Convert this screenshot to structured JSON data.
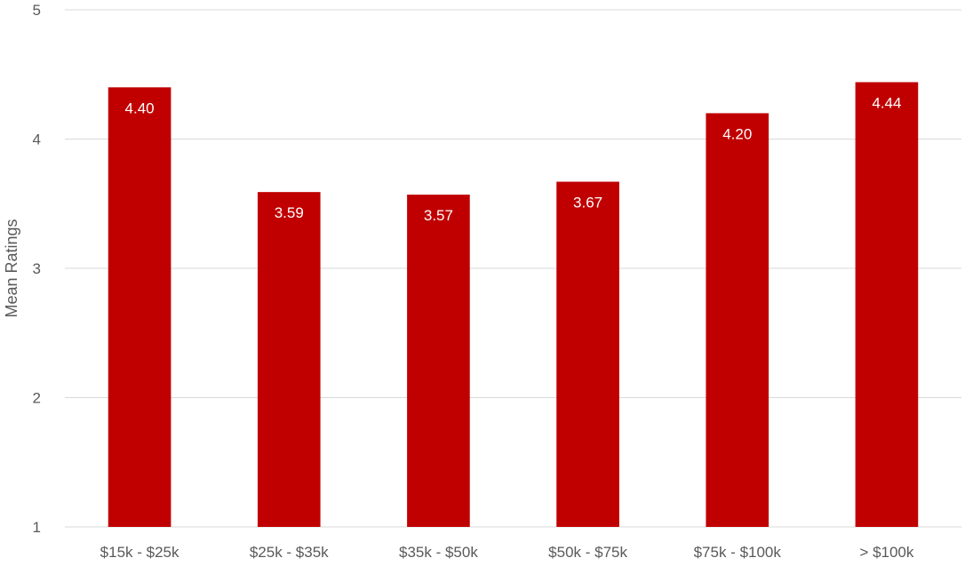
{
  "chart_data": {
    "type": "bar",
    "title": "",
    "xlabel": "",
    "ylabel": "Mean Ratings",
    "ylim": [
      1,
      5
    ],
    "yticks": [
      1,
      2,
      3,
      4,
      5
    ],
    "grid": true,
    "categories": [
      "$15k - $25k",
      "$25k - $35k",
      "$35k - $50k",
      "$50k - $75k",
      "$75k - $100k",
      "> $100k"
    ],
    "values": [
      4.4,
      3.59,
      3.57,
      3.67,
      4.2,
      4.44
    ],
    "data_labels": [
      "4.40",
      "3.59",
      "3.57",
      "3.67",
      "4.20",
      "4.44"
    ],
    "bar_color": "#c00000",
    "label_color": "#ffffff"
  }
}
